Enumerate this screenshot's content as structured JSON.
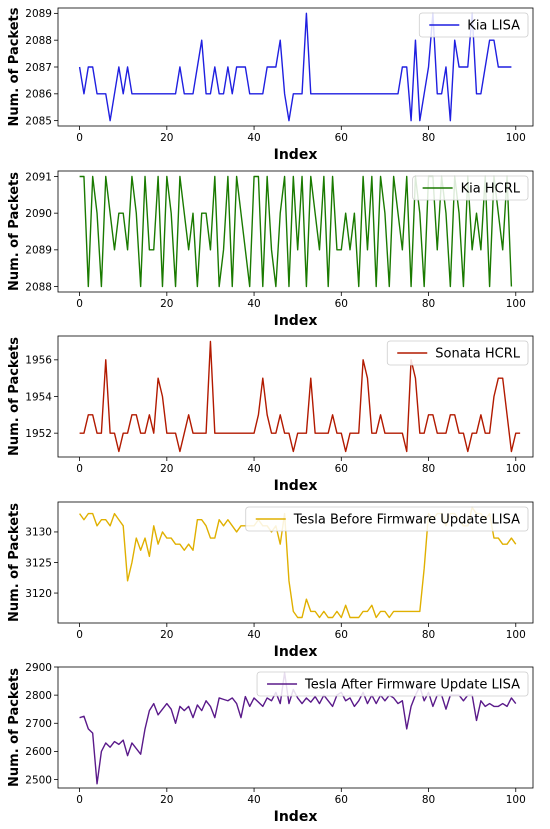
{
  "chart_data": [
    {
      "type": "line",
      "xlabel": "Index",
      "ylabel": "Num. of Packets",
      "xlim": [
        -4.95,
        103.95
      ],
      "ylim": [
        2084.8,
        2089.2
      ],
      "xticks": [
        0,
        20,
        40,
        60,
        80,
        100
      ],
      "yticks": [
        2085,
        2086,
        2087,
        2088,
        2089
      ],
      "legend": "top-right",
      "series": [
        {
          "name": "Kia LISA",
          "color": "#1f1fe0",
          "values": [
            2087,
            2086,
            2087,
            2087,
            2086,
            2086,
            2086,
            2085,
            2086,
            2087,
            2086,
            2087,
            2086,
            2086,
            2086,
            2086,
            2086,
            2086,
            2086,
            2086,
            2086,
            2086,
            2086,
            2087,
            2086,
            2086,
            2086,
            2087,
            2088,
            2086,
            2086,
            2087,
            2086,
            2086,
            2087,
            2086,
            2087,
            2087,
            2087,
            2086,
            2086,
            2086,
            2086,
            2087,
            2087,
            2087,
            2088,
            2086,
            2085,
            2086,
            2086,
            2086,
            2089,
            2086,
            2086,
            2086,
            2086,
            2086,
            2086,
            2086,
            2086,
            2086,
            2086,
            2086,
            2086,
            2086,
            2086,
            2086,
            2086,
            2086,
            2086,
            2086,
            2086,
            2086,
            2087,
            2087,
            2085,
            2088,
            2085,
            2086,
            2087,
            2089,
            2086,
            2086,
            2087,
            2085,
            2088,
            2087,
            2087,
            2087,
            2089,
            2086,
            2086,
            2087,
            2088,
            2088,
            2087,
            2087,
            2087,
            2087
          ]
        }
      ]
    },
    {
      "type": "line",
      "xlabel": "Index",
      "ylabel": "Num. of Packets",
      "xlim": [
        -4.95,
        103.95
      ],
      "ylim": [
        2087.85,
        2091.15
      ],
      "xticks": [
        0,
        20,
        40,
        60,
        80,
        100
      ],
      "yticks": [
        2088,
        2089,
        2090,
        2091
      ],
      "legend": "top-right",
      "series": [
        {
          "name": "Kia HCRL",
          "color": "#1a7a00",
          "values": [
            2091,
            2091,
            2088,
            2091,
            2090,
            2088,
            2091,
            2090,
            2089,
            2090,
            2090,
            2089,
            2091,
            2090,
            2088,
            2091,
            2089,
            2089,
            2091,
            2088,
            2091,
            2090,
            2088,
            2091,
            2090,
            2089,
            2090,
            2088,
            2090,
            2090,
            2089,
            2091,
            2088,
            2089,
            2091,
            2088,
            2091,
            2090,
            2089,
            2088,
            2091,
            2091,
            2088,
            2091,
            2089,
            2088,
            2090,
            2091,
            2088,
            2091,
            2089,
            2091,
            2088,
            2091,
            2090,
            2089,
            2091,
            2088,
            2091,
            2089,
            2089,
            2090,
            2089,
            2090,
            2088,
            2091,
            2089,
            2091,
            2088,
            2091,
            2090,
            2088,
            2091,
            2090,
            2089,
            2091,
            2088,
            2091,
            2090,
            2088,
            2091,
            2091,
            2089,
            2091,
            2090,
            2088,
            2091,
            2090,
            2088,
            2091,
            2089,
            2090,
            2089,
            2091,
            2088,
            2091,
            2090,
            2089,
            2091,
            2088
          ]
        }
      ]
    },
    {
      "type": "line",
      "xlabel": "Index",
      "ylabel": "Num. of Packets",
      "xlim": [
        -4.95,
        103.95
      ],
      "ylim": [
        1950.7,
        1957.3
      ],
      "xticks": [
        0,
        20,
        40,
        60,
        80,
        100
      ],
      "yticks": [
        1952,
        1954,
        1956
      ],
      "legend": "top-right",
      "series": [
        {
          "name": "Sonata HCRL",
          "color": "#b21a00",
          "values": [
            1952,
            1952,
            1953,
            1953,
            1952,
            1952,
            1956,
            1952,
            1952,
            1951,
            1952,
            1952,
            1953,
            1953,
            1952,
            1952,
            1953,
            1952,
            1955,
            1954,
            1952,
            1952,
            1952,
            1951,
            1952,
            1953,
            1952,
            1952,
            1952,
            1952,
            1957,
            1952,
            1952,
            1952,
            1952,
            1952,
            1952,
            1952,
            1952,
            1952,
            1952,
            1953,
            1955,
            1953,
            1952,
            1952,
            1953,
            1952,
            1952,
            1951,
            1952,
            1952,
            1952,
            1955,
            1952,
            1952,
            1952,
            1952,
            1953,
            1952,
            1952,
            1951,
            1952,
            1952,
            1952,
            1956,
            1955,
            1952,
            1952,
            1953,
            1952,
            1952,
            1952,
            1952,
            1952,
            1951,
            1956,
            1955,
            1952,
            1952,
            1953,
            1953,
            1952,
            1952,
            1952,
            1953,
            1953,
            1952,
            1952,
            1951,
            1952,
            1952,
            1953,
            1952,
            1952,
            1954,
            1955,
            1955,
            1953,
            1951,
            1952,
            1952
          ]
        }
      ]
    },
    {
      "type": "line",
      "xlabel": "Index",
      "ylabel": "Num. of Packets",
      "xlim": [
        -4.95,
        103.95
      ],
      "ylim": [
        3115.1,
        3134.9
      ],
      "xticks": [
        0,
        20,
        40,
        60,
        80,
        100
      ],
      "yticks": [
        3120,
        3125,
        3130
      ],
      "legend": "top-right",
      "series": [
        {
          "name": "Tesla Before Firmware Update LISA",
          "color": "#e0b000",
          "values": [
            3133,
            3132,
            3133,
            3133,
            3131,
            3132,
            3132,
            3131,
            3133,
            3132,
            3131,
            3122,
            3125,
            3129,
            3127,
            3129,
            3126,
            3131,
            3128,
            3130,
            3129,
            3129,
            3128,
            3128,
            3127,
            3128,
            3127,
            3132,
            3132,
            3131,
            3129,
            3129,
            3132,
            3131,
            3132,
            3131,
            3130,
            3131,
            3131,
            3131,
            3131,
            3132,
            3131,
            3131,
            3130,
            3131,
            3128,
            3133,
            3122,
            3117,
            3116,
            3116,
            3119,
            3117,
            3117,
            3116,
            3117,
            3116,
            3116,
            3117,
            3116,
            3118,
            3116,
            3116,
            3116,
            3117,
            3117,
            3118,
            3116,
            3117,
            3117,
            3116,
            3117,
            3117,
            3117,
            3117,
            3117,
            3117,
            3117,
            3124,
            3133,
            3132,
            3133,
            3133,
            3131,
            3133,
            3133,
            3132,
            3131,
            3131,
            3134,
            3133,
            3133,
            3132,
            3133,
            3129,
            3129,
            3128,
            3128,
            3129,
            3128
          ]
        }
      ]
    },
    {
      "type": "line",
      "xlabel": "Index",
      "ylabel": "Num. of Packets",
      "xlim": [
        -4.95,
        103.95
      ],
      "ylim": [
        2470,
        2900
      ],
      "xticks": [
        0,
        20,
        40,
        60,
        80,
        100
      ],
      "yticks": [
        2500,
        2600,
        2700,
        2800,
        2900
      ],
      "legend": "top-right",
      "series": [
        {
          "name": "Tesla After Firmware Update LISA",
          "color": "#5a1a8a",
          "values": [
            2720,
            2725,
            2680,
            2665,
            2485,
            2600,
            2630,
            2615,
            2635,
            2625,
            2640,
            2585,
            2630,
            2610,
            2590,
            2680,
            2745,
            2770,
            2730,
            2750,
            2770,
            2750,
            2700,
            2760,
            2745,
            2760,
            2720,
            2765,
            2745,
            2780,
            2760,
            2720,
            2790,
            2785,
            2780,
            2790,
            2770,
            2720,
            2795,
            2760,
            2790,
            2775,
            2760,
            2790,
            2780,
            2810,
            2770,
            2880,
            2770,
            2820,
            2790,
            2770,
            2790,
            2775,
            2795,
            2770,
            2800,
            2780,
            2760,
            2800,
            2810,
            2780,
            2790,
            2760,
            2780,
            2810,
            2770,
            2800,
            2770,
            2800,
            2780,
            2800,
            2790,
            2770,
            2780,
            2680,
            2760,
            2800,
            2830,
            2780,
            2810,
            2760,
            2800,
            2800,
            2750,
            2800,
            2800,
            2800,
            2780,
            2800,
            2800,
            2710,
            2780,
            2760,
            2770,
            2760,
            2760,
            2770,
            2760,
            2790,
            2770
          ]
        }
      ]
    }
  ]
}
